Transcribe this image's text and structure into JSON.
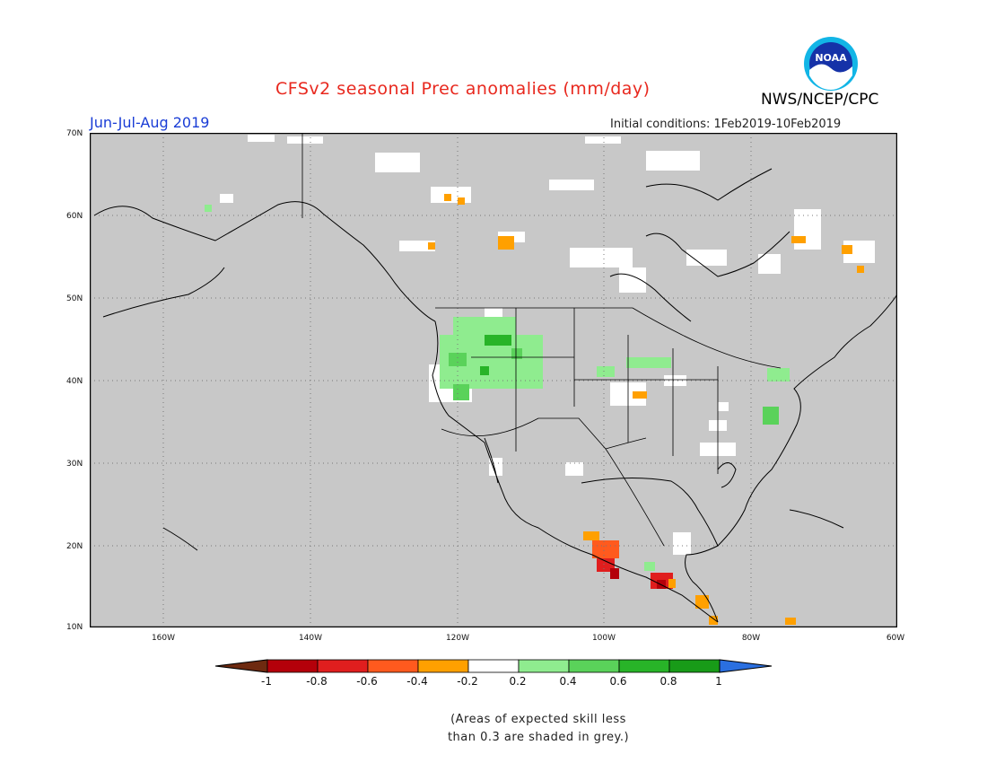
{
  "title": "CFSv2 seasonal Prec anomalies (mm/day)",
  "season": "Jun-Jul-Aug 2019",
  "initial_conditions": "Initial conditions: 1Feb2019-10Feb2019",
  "agency": "NWS/NCEP/CPC",
  "logo_text": "NOAA",
  "note_line1": "(Areas of expected skill less",
  "note_line2": "than 0.3 are shaded in grey.)",
  "map": {
    "lon_range": [
      -170,
      -60
    ],
    "lat_range": [
      10,
      70
    ],
    "lat_ticks": [
      "70N",
      "60N",
      "50N",
      "40N",
      "30N",
      "20N",
      "10N"
    ],
    "lon_ticks": [
      "160W",
      "140W",
      "120W",
      "100W",
      "80W",
      "60W"
    ],
    "background_color": "#c8c8c8",
    "gridlines": "dotted"
  },
  "colorbar": {
    "tick_labels": [
      "-1",
      "-0.8",
      "-0.6",
      "-0.4",
      "-0.2",
      "0.2",
      "0.4",
      "0.6",
      "0.8",
      "1"
    ],
    "colors": [
      "#6e2a10",
      "#b4000a",
      "#e01e1e",
      "#ff5a1e",
      "#ffa000",
      "#ffffff",
      "#8fec8f",
      "#5ad25a",
      "#28b428",
      "#189b18",
      "#2a6fe0"
    ]
  }
}
